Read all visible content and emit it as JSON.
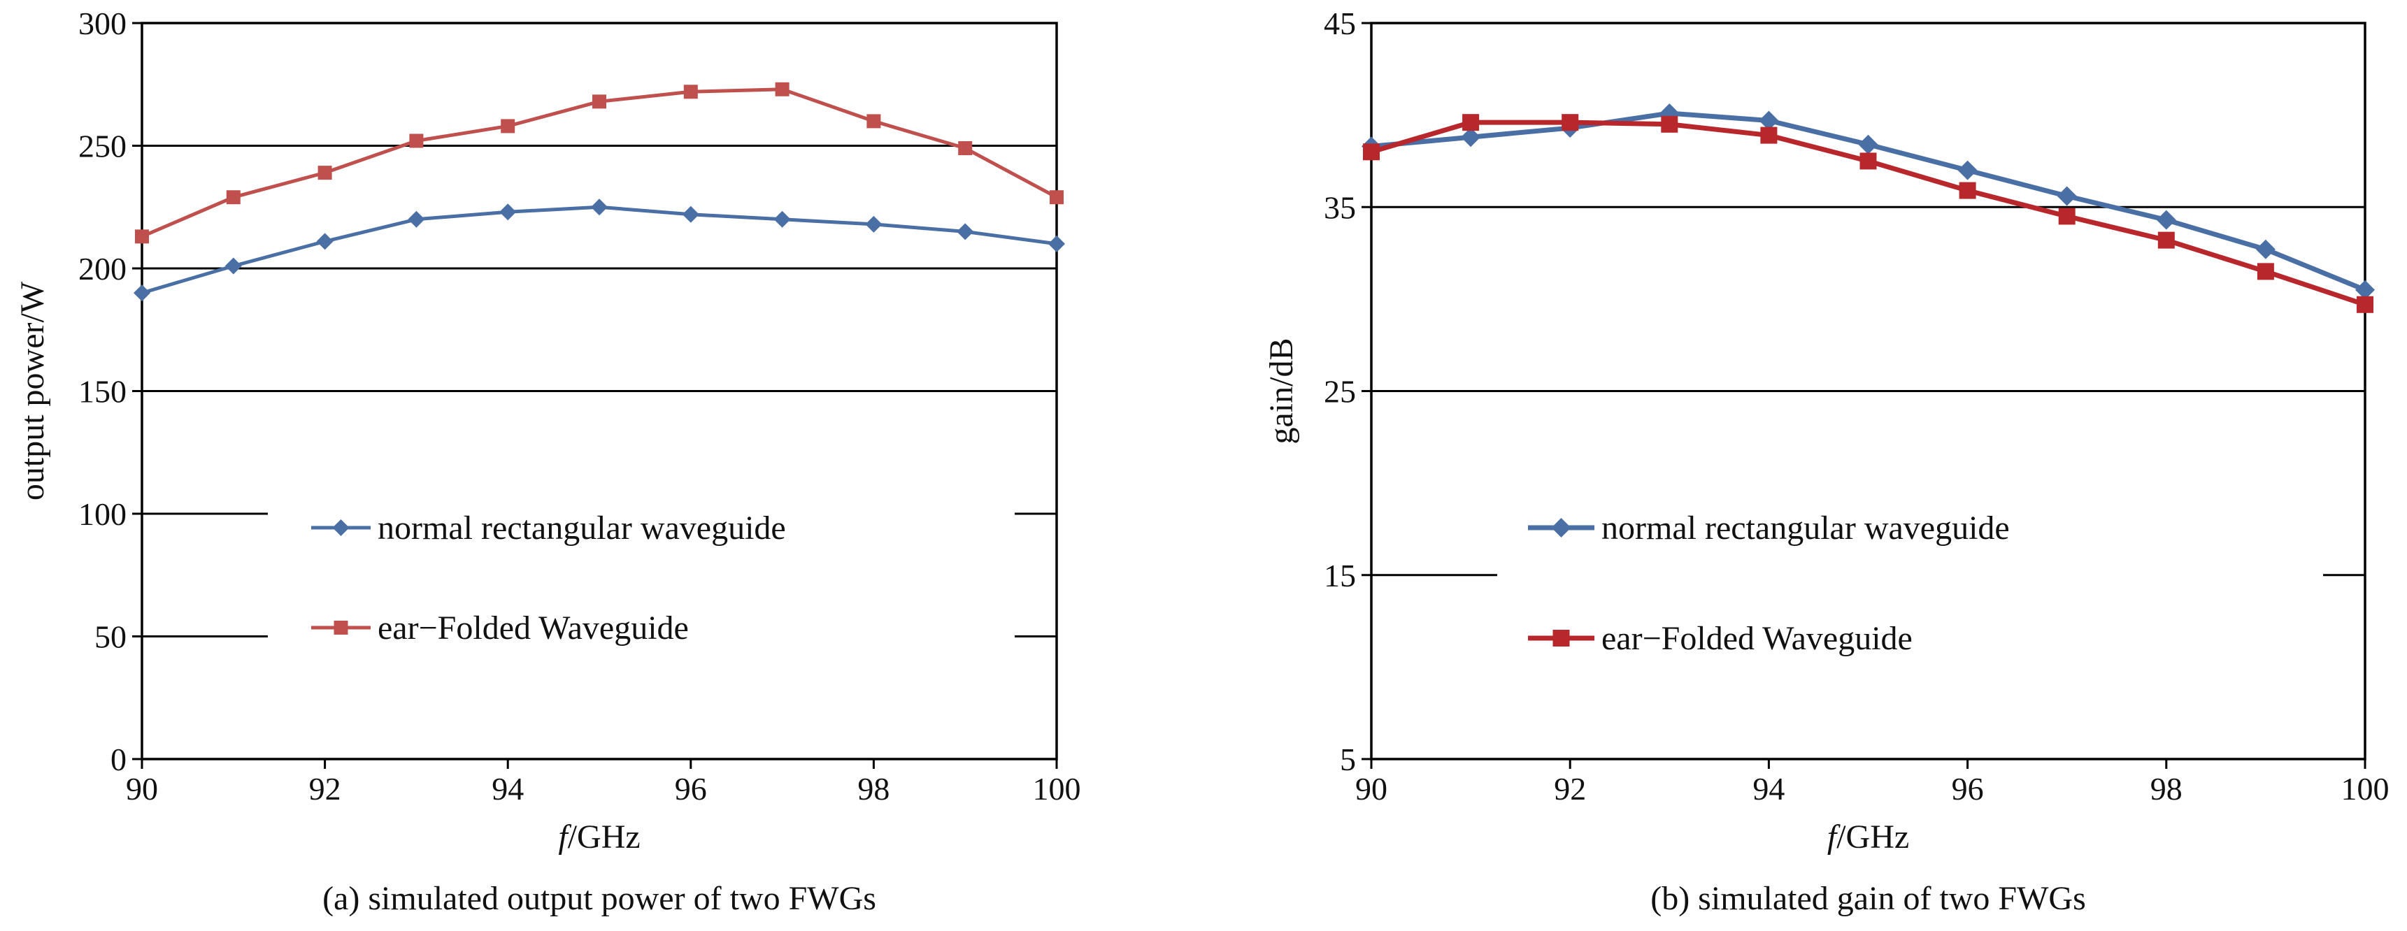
{
  "colors": {
    "panel_a_series_1": "#4A6FA5",
    "panel_a_series_2": "#C0504D",
    "panel_b_series_1": "#4A6FA5",
    "panel_b_series_2": "#B8272B",
    "axis": "#000000"
  },
  "chart_data": [
    {
      "type": "line",
      "caption": "(a) simulated output power of two FWGs",
      "xlabel_italic": "f",
      "xlabel_rest": "/GHz",
      "ylabel": "output power/W",
      "xlim": [
        90,
        100
      ],
      "ylim": [
        0,
        300
      ],
      "xticks": [
        90,
        92,
        94,
        96,
        98,
        100
      ],
      "yticks": [
        0,
        50,
        100,
        150,
        200,
        250,
        300
      ],
      "grid": "horizontal",
      "legend_placement": "center-left",
      "x": [
        90,
        91,
        92,
        93,
        94,
        95,
        96,
        97,
        98,
        99,
        100
      ],
      "series": [
        {
          "name": "normal rectangular waveguide",
          "marker": "diamond",
          "values": [
            190,
            201,
            211,
            220,
            223,
            225,
            222,
            220,
            218,
            215,
            210
          ]
        },
        {
          "name": "ear−Folded Waveguide",
          "marker": "square",
          "values": [
            213,
            229,
            239,
            252,
            258,
            268,
            272,
            273,
            260,
            249,
            229
          ]
        }
      ]
    },
    {
      "type": "line",
      "caption": "(b) simulated gain of two FWGs",
      "xlabel_italic": "f",
      "xlabel_rest": "/GHz",
      "ylabel": "gain/dB",
      "xlim": [
        90,
        100
      ],
      "ylim": [
        5,
        45
      ],
      "xticks": [
        90,
        92,
        94,
        96,
        98,
        100
      ],
      "yticks": [
        5,
        15,
        25,
        35,
        45
      ],
      "grid": "horizontal",
      "legend_placement": "center-left",
      "x": [
        90,
        91,
        92,
        93,
        94,
        95,
        96,
        97,
        98,
        99,
        100
      ],
      "series": [
        {
          "name": "normal rectangular waveguide",
          "marker": "diamond",
          "values": [
            38.3,
            38.8,
            39.3,
            40.1,
            39.7,
            38.4,
            37.0,
            35.6,
            34.3,
            32.7,
            30.5
          ]
        },
        {
          "name": "ear−Folded Waveguide",
          "marker": "square",
          "values": [
            38.0,
            39.6,
            39.6,
            39.5,
            38.9,
            37.5,
            35.9,
            34.5,
            33.2,
            31.5,
            29.7
          ]
        }
      ]
    }
  ]
}
